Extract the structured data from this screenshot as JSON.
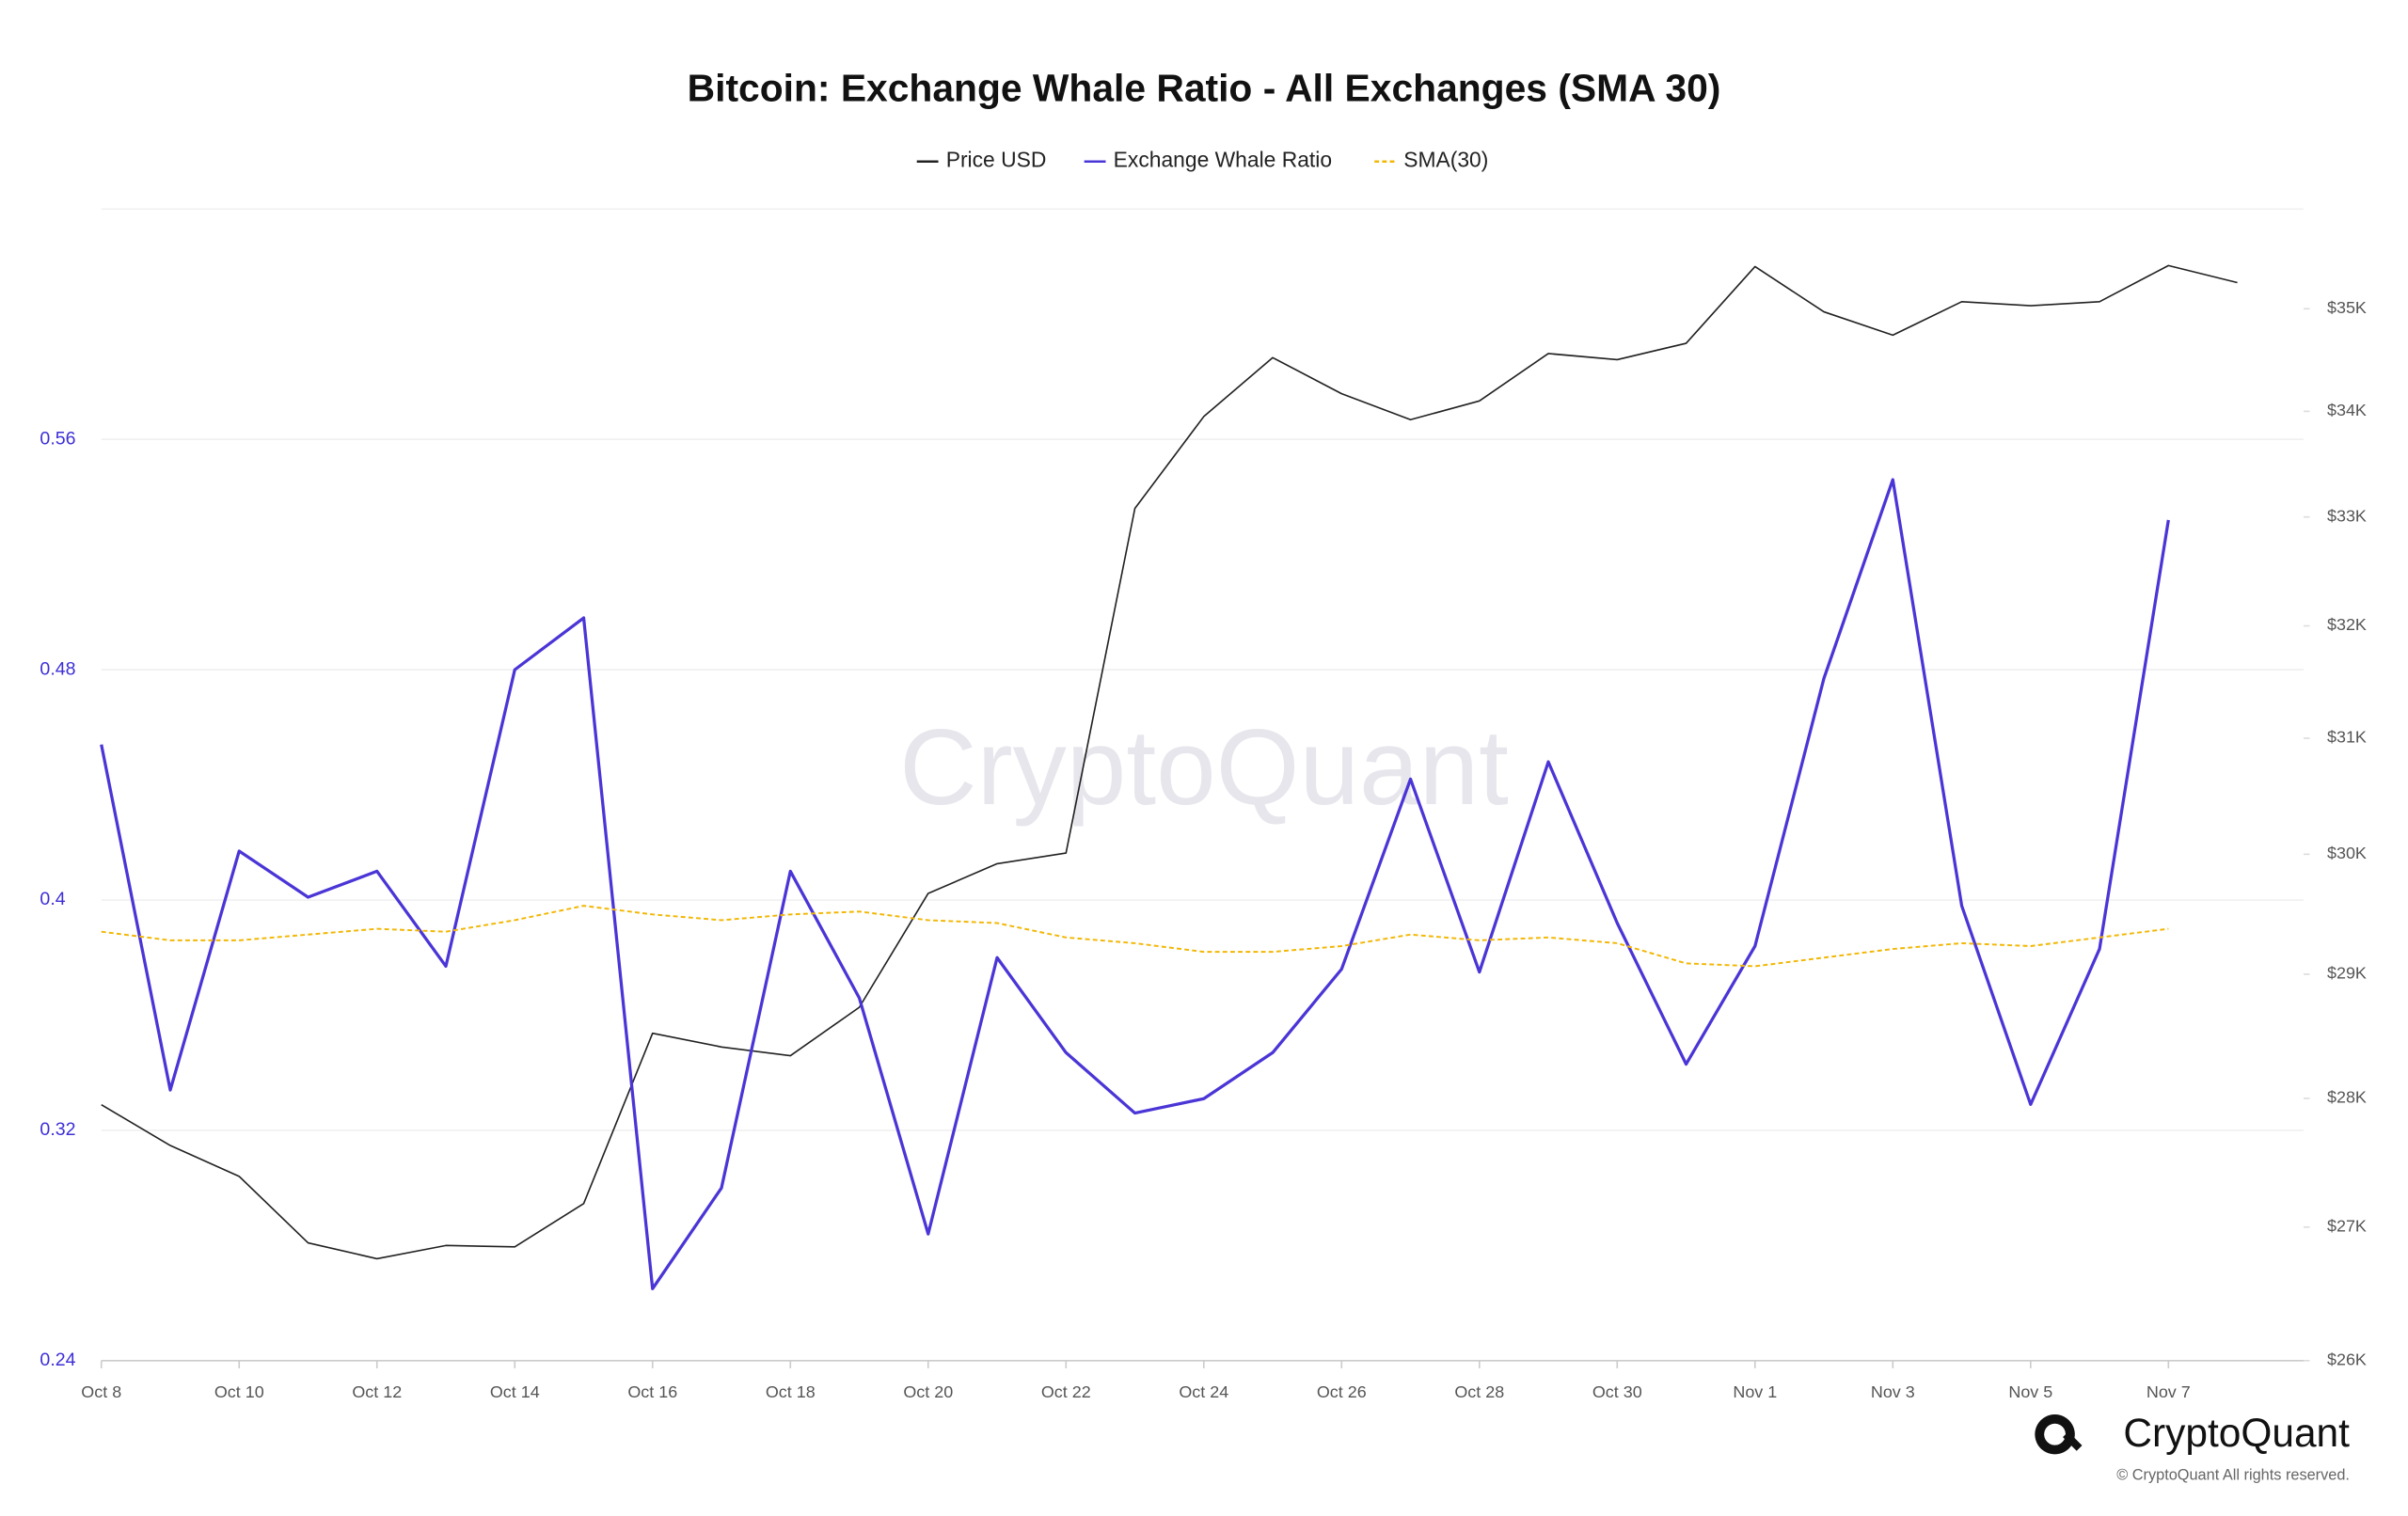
{
  "chart_data": {
    "type": "line",
    "title": "Bitcoin: Exchange Whale Ratio - All Exchanges (SMA 30)",
    "watermark": "CryptoQuant",
    "brand": "CryptoQuant",
    "copyright": "© CryptoQuant All rights reserved.",
    "categories": [
      "Oct 8",
      null,
      "Oct 10",
      null,
      "Oct 12",
      null,
      "Oct 14",
      null,
      "Oct 16",
      null,
      "Oct 18",
      null,
      "Oct 20",
      null,
      "Oct 22",
      null,
      "Oct 24",
      null,
      "Oct 26",
      null,
      "Oct 28",
      null,
      "Oct 30",
      null,
      "Nov 1",
      null,
      "Nov 3",
      null,
      "Nov 5",
      null,
      "Nov 7",
      null
    ],
    "ylim": [
      0.24,
      0.64
    ],
    "yticks": [
      0.24,
      0.32,
      0.4,
      0.48,
      0.56
    ],
    "y2lim": [
      26000,
      36000
    ],
    "y2scale": "log",
    "y2ticks": [
      {
        "value": 26000,
        "label": "$26K"
      },
      {
        "value": 27000,
        "label": "$27K"
      },
      {
        "value": 28000,
        "label": "$28K"
      },
      {
        "value": 29000,
        "label": "$29K"
      },
      {
        "value": 30000,
        "label": "$30K"
      },
      {
        "value": 31000,
        "label": "$31K"
      },
      {
        "value": 32000,
        "label": "$32K"
      },
      {
        "value": 33000,
        "label": "$33K"
      },
      {
        "value": 34000,
        "label": "$34K"
      },
      {
        "value": 35000,
        "label": "$35K"
      }
    ],
    "grid": true,
    "legend": "top",
    "series": [
      {
        "name": "Price USD",
        "color": "#222222",
        "axis": "y2",
        "dash": false,
        "values": [
          27950,
          27630,
          27390,
          26880,
          26760,
          26860,
          26850,
          27180,
          28520,
          28410,
          28340,
          28730,
          29670,
          29920,
          30010,
          33080,
          33950,
          34520,
          34170,
          33920,
          34100,
          34560,
          34500,
          34660,
          35420,
          34970,
          34740,
          35070,
          35030,
          35070,
          35430,
          35260
        ]
      },
      {
        "name": "Exchange Whale Ratio",
        "color": "#4a35d6",
        "axis": "y",
        "dash": false,
        "values": [
          0.454,
          0.334,
          0.417,
          0.401,
          0.41,
          0.377,
          0.48,
          0.498,
          0.265,
          0.3,
          0.41,
          0.366,
          0.284,
          0.38,
          0.347,
          0.326,
          0.331,
          0.347,
          0.376,
          0.442,
          0.375,
          0.448,
          0.392,
          0.343,
          0.384,
          0.477,
          0.546,
          0.398,
          0.329,
          0.383,
          0.532,
          null
        ]
      },
      {
        "name": "SMA(30)",
        "color": "#f2b705",
        "axis": "y",
        "dash": true,
        "values": [
          0.389,
          0.386,
          0.386,
          0.388,
          0.39,
          0.389,
          0.393,
          0.398,
          0.395,
          0.393,
          0.395,
          0.396,
          0.393,
          0.392,
          0.387,
          0.385,
          0.382,
          0.382,
          0.384,
          0.388,
          0.386,
          0.387,
          0.385,
          0.378,
          0.377,
          0.38,
          0.383,
          0.385,
          0.384,
          0.387,
          0.39,
          null
        ]
      }
    ]
  }
}
